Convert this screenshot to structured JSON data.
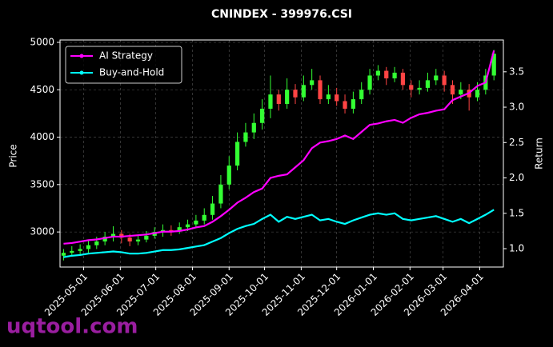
{
  "chart_data": {
    "type": "candlestick_returns",
    "title": "CNINDEX - 399976.CSI",
    "ylabel": "Price",
    "y2label": "Return",
    "watermark": "uqtool.com",
    "x": [
      "2025-04-14",
      "2025-04-21",
      "2025-04-28",
      "2025-05-05",
      "2025-05-12",
      "2025-05-19",
      "2025-05-26",
      "2025-06-02",
      "2025-06-09",
      "2025-06-16",
      "2025-06-23",
      "2025-06-30",
      "2025-07-07",
      "2025-07-14",
      "2025-07-21",
      "2025-07-28",
      "2025-08-04",
      "2025-08-11",
      "2025-08-18",
      "2025-08-25",
      "2025-09-01",
      "2025-09-08",
      "2025-09-15",
      "2025-09-22",
      "2025-09-29",
      "2025-10-06",
      "2025-10-13",
      "2025-10-20",
      "2025-10-27",
      "2025-11-03",
      "2025-11-10",
      "2025-11-17",
      "2025-11-24",
      "2025-12-01",
      "2025-12-08",
      "2025-12-15",
      "2025-12-22",
      "2025-12-29",
      "2026-01-05",
      "2026-01-12",
      "2026-01-19",
      "2026-01-26",
      "2026-02-02",
      "2026-02-09",
      "2026-02-16",
      "2026-02-23",
      "2026-03-02",
      "2026-03-09",
      "2026-03-16",
      "2026-03-23",
      "2026-03-30",
      "2026-04-06",
      "2026-04-13"
    ],
    "open": [
      2750,
      2780,
      2800,
      2820,
      2860,
      2900,
      2950,
      2980,
      2940,
      2900,
      2920,
      2960,
      3000,
      3020,
      3010,
      3050,
      3080,
      3120,
      3180,
      3300,
      3500,
      3700,
      3950,
      4050,
      4150,
      4300,
      4450,
      4350,
      4500,
      4420,
      4550,
      4600,
      4400,
      4450,
      4380,
      4300,
      4400,
      4500,
      4650,
      4700,
      4620,
      4680,
      4550,
      4500,
      4520,
      4600,
      4650,
      4550,
      4450,
      4500,
      4420,
      4500,
      4650
    ],
    "high": [
      2820,
      2850,
      2870,
      2910,
      2950,
      3000,
      3060,
      3020,
      2980,
      2970,
      3010,
      3050,
      3080,
      3070,
      3100,
      3130,
      3180,
      3250,
      3380,
      3600,
      3800,
      4050,
      4150,
      4250,
      4400,
      4650,
      4500,
      4620,
      4560,
      4650,
      4720,
      4650,
      4550,
      4520,
      4450,
      4480,
      4580,
      4720,
      4760,
      4740,
      4740,
      4720,
      4600,
      4600,
      4680,
      4720,
      4700,
      4600,
      4580,
      4560,
      4580,
      4720,
      4920
    ],
    "low": [
      2700,
      2740,
      2750,
      2780,
      2820,
      2860,
      2900,
      2880,
      2850,
      2860,
      2890,
      2930,
      2950,
      2960,
      2980,
      3010,
      3050,
      3080,
      3130,
      3250,
      3450,
      3650,
      3900,
      3980,
      4080,
      4200,
      4280,
      4300,
      4350,
      4380,
      4500,
      4350,
      4350,
      4330,
      4250,
      4250,
      4350,
      4450,
      4600,
      4550,
      4580,
      4500,
      4420,
      4450,
      4480,
      4550,
      4480,
      4350,
      4400,
      4280,
      4380,
      4450,
      4600
    ],
    "close": [
      2780,
      2800,
      2820,
      2860,
      2900,
      2950,
      2980,
      2940,
      2900,
      2920,
      2960,
      3000,
      3020,
      3010,
      3050,
      3080,
      3120,
      3180,
      3300,
      3500,
      3700,
      3950,
      4050,
      4150,
      4300,
      4450,
      4350,
      4500,
      4420,
      4550,
      4600,
      4400,
      4450,
      4380,
      4300,
      4400,
      4500,
      4650,
      4700,
      4620,
      4680,
      4550,
      4500,
      4520,
      4600,
      4650,
      4550,
      4450,
      4500,
      4420,
      4500,
      4650,
      4880
    ],
    "up_color": "#33ff33",
    "down_color": "#ff4444",
    "series": [
      {
        "name": "AI Strategy",
        "color": "#ff00ff",
        "axis": "y2",
        "values": [
          1.07,
          1.08,
          1.1,
          1.12,
          1.13,
          1.15,
          1.17,
          1.17,
          1.18,
          1.19,
          1.2,
          1.22,
          1.24,
          1.24,
          1.25,
          1.27,
          1.3,
          1.32,
          1.38,
          1.46,
          1.55,
          1.65,
          1.72,
          1.8,
          1.85,
          2.0,
          2.03,
          2.05,
          2.15,
          2.25,
          2.42,
          2.5,
          2.52,
          2.55,
          2.6,
          2.55,
          2.65,
          2.75,
          2.77,
          2.8,
          2.82,
          2.78,
          2.85,
          2.9,
          2.92,
          2.95,
          2.97,
          3.1,
          3.15,
          3.2,
          3.3,
          3.35,
          3.8
        ]
      },
      {
        "name": "Buy-and-Hold",
        "color": "#00ffff",
        "axis": "y2",
        "values": [
          0.88,
          0.9,
          0.91,
          0.93,
          0.94,
          0.95,
          0.96,
          0.95,
          0.93,
          0.93,
          0.94,
          0.96,
          0.98,
          0.98,
          0.99,
          1.01,
          1.03,
          1.05,
          1.1,
          1.15,
          1.22,
          1.28,
          1.32,
          1.35,
          1.42,
          1.48,
          1.38,
          1.45,
          1.42,
          1.45,
          1.48,
          1.4,
          1.42,
          1.38,
          1.35,
          1.4,
          1.44,
          1.48,
          1.5,
          1.48,
          1.5,
          1.42,
          1.4,
          1.42,
          1.44,
          1.46,
          1.42,
          1.38,
          1.42,
          1.36,
          1.42,
          1.48,
          1.55
        ]
      }
    ],
    "xlim": [
      "2025-04-11",
      "2026-04-21"
    ],
    "xticks": [
      "2025-05-01",
      "2025-06-01",
      "2025-07-01",
      "2025-08-01",
      "2025-09-01",
      "2025-10-01",
      "2025-11-01",
      "2025-12-01",
      "2026-01-01",
      "2026-02-01",
      "2026-03-01",
      "2026-04-01"
    ],
    "ylim": [
      2630,
      5025
    ],
    "yticks": [
      3000,
      3500,
      4000,
      4500,
      5000
    ],
    "y2lim": [
      0.74,
      3.95
    ],
    "y2ticks": [
      {
        "value": 1,
        "label": "1.0"
      },
      1.5,
      {
        "value": 2,
        "label": "2.0"
      },
      2.5,
      {
        "value": 3,
        "label": "3.0"
      },
      3.5
    ],
    "grid": true,
    "legend": "upper left"
  }
}
